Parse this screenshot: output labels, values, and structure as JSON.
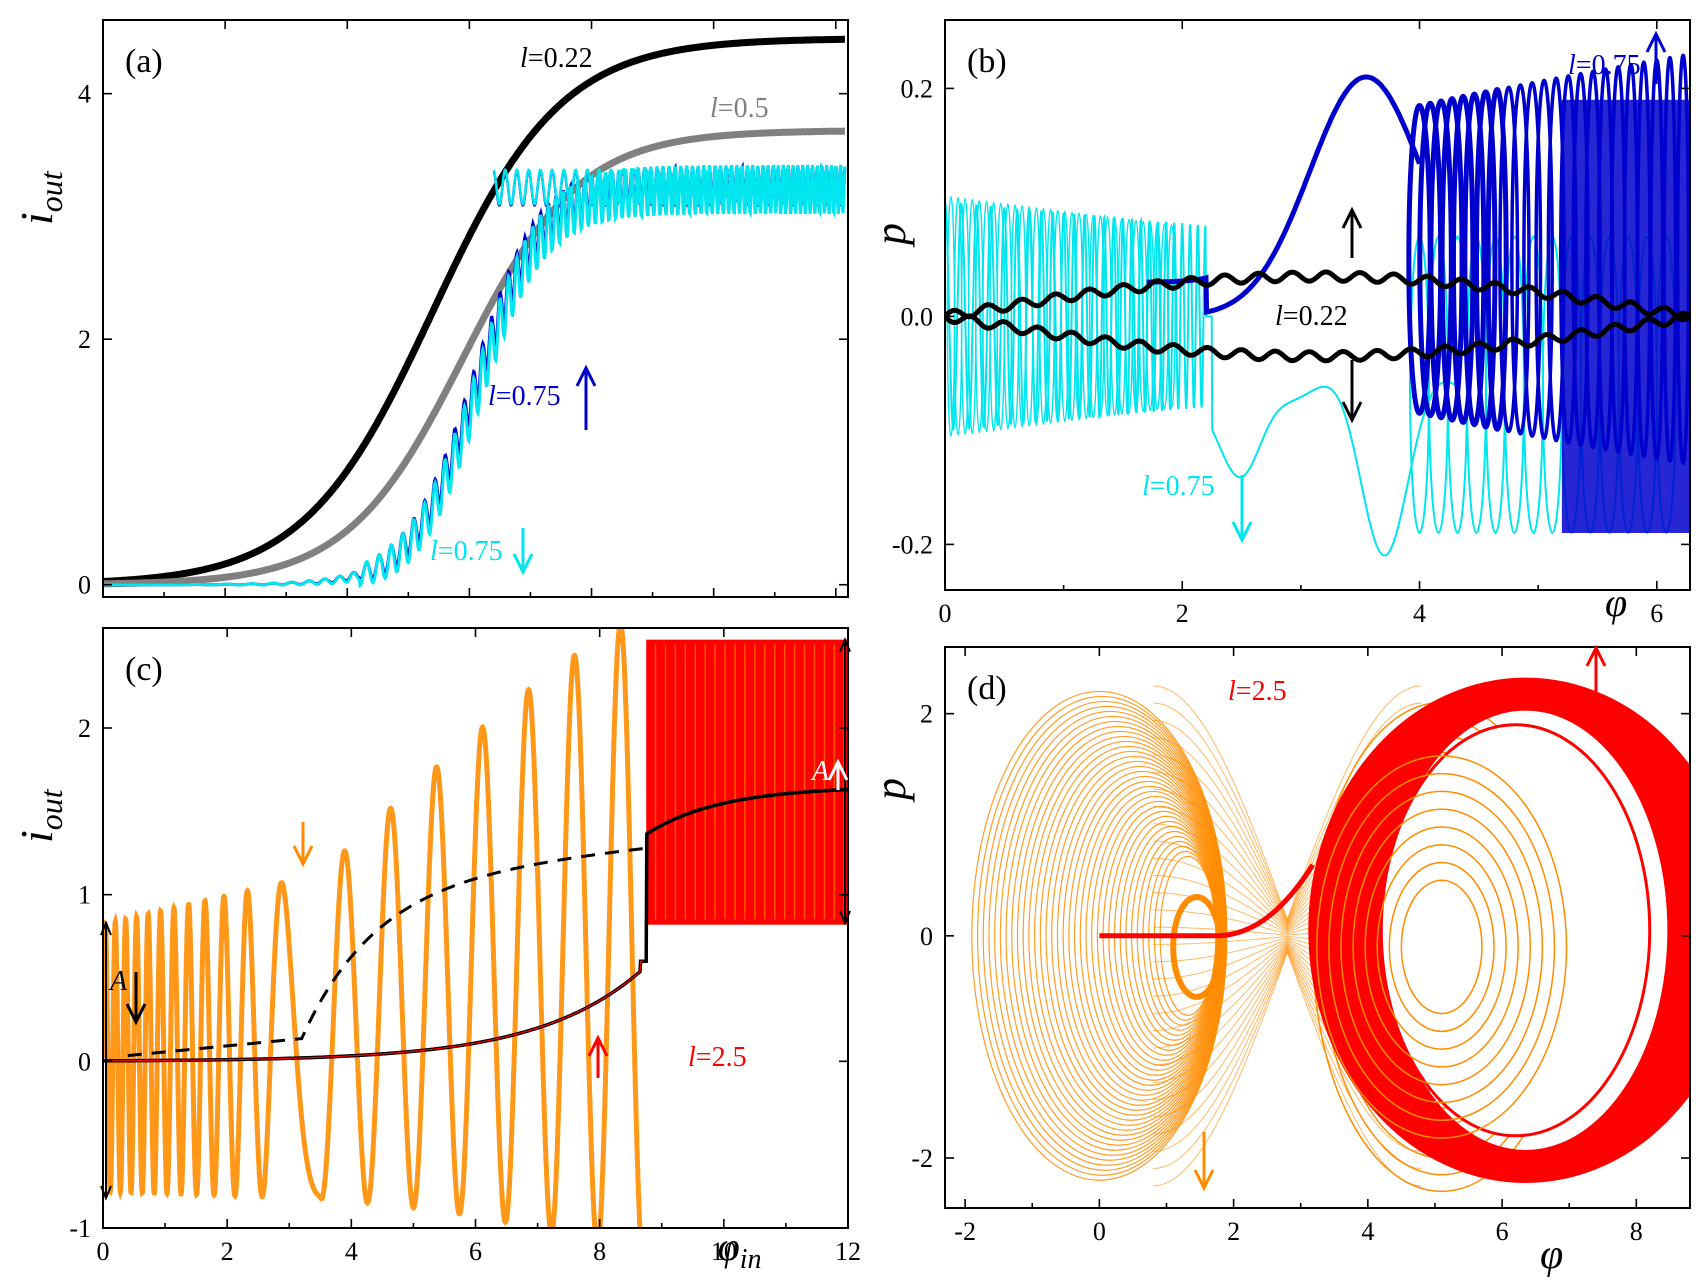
{
  "chart_data": [
    {
      "type": "line",
      "panel_label": "(a)",
      "xlim": [
        0,
        12.2
      ],
      "ylim": [
        -0.1,
        4.6
      ],
      "xticks": [
        0,
        2,
        4,
        6,
        8,
        10,
        12
      ],
      "xtick_labels": [
        "",
        "",
        "",
        "",
        "",
        "",
        ""
      ],
      "yticks": [
        0,
        2,
        4
      ],
      "ytick_labels": [
        "0",
        "2",
        "4"
      ],
      "ylabel_main": "i",
      "ylabel_sub": "out",
      "series": [
        {
          "label": "l=0.22",
          "color": "#000000",
          "ymax": 4.45,
          "x0": 5.4,
          "k": 0.95
        },
        {
          "label": "l=0.5",
          "color": "#808080",
          "ymax": 3.7,
          "x0": 5.9,
          "k": 1.05
        },
        {
          "label": "l=0.75↑",
          "color": "#0000cc",
          "ymax": 3.25,
          "x0": 6.1,
          "k": 1.9,
          "osc": 0.16
        },
        {
          "label": "l=0.75↓",
          "color": "#00e5ee",
          "ymax": 3.22,
          "x0": 6.15,
          "k": 1.9,
          "osc": 0.2
        }
      ],
      "annotations": [
        {
          "italic": "l",
          "text": "=0.22",
          "color": "#000000"
        },
        {
          "italic": "l",
          "text": "=0.5",
          "color": "#808080"
        },
        {
          "italic": "l",
          "text": "=0.75",
          "color": "#0000cc"
        },
        {
          "italic": "l",
          "text": "=0.75",
          "color": "#00e5ee"
        }
      ]
    },
    {
      "type": "scatter",
      "panel_label": "(b)",
      "xlim": [
        0,
        6.28
      ],
      "ylim": [
        -0.24,
        0.26
      ],
      "xticks": [
        0,
        2,
        4,
        6
      ],
      "xtick_labels": [
        "0",
        "2",
        "4",
        "6"
      ],
      "yticks": [
        -0.2,
        0.0,
        0.2
      ],
      "ytick_labels": [
        "-0.2",
        "0.0",
        "0.2"
      ],
      "xlabel": "φ",
      "ylabel": "p",
      "annotations": [
        {
          "italic": "l",
          "text": "=0.75",
          "color": "#0000cc"
        },
        {
          "italic": "l",
          "text": "=0.22",
          "color": "#000000"
        },
        {
          "italic": "l",
          "text": "=0.75",
          "color": "#00e5ee"
        }
      ]
    },
    {
      "type": "line",
      "panel_label": "(c)",
      "xlim": [
        0,
        12
      ],
      "ylim": [
        -1,
        2.6
      ],
      "xticks": [
        0,
        2,
        4,
        6,
        8,
        10,
        12
      ],
      "xtick_labels": [
        "0",
        "2",
        "4",
        "6",
        "8",
        "10",
        "12"
      ],
      "yticks": [
        -1,
        0,
        1,
        2
      ],
      "ytick_labels": [
        "-1",
        "0",
        "1",
        "2"
      ],
      "xlabel_main": "φ",
      "xlabel_sub": "in",
      "ylabel_main": "i",
      "ylabel_sub": "out",
      "annotations": [
        {
          "italic": "l",
          "text": "=2.5",
          "color": "#ff0000"
        },
        {
          "text": "A",
          "color": "#000000"
        },
        {
          "text": "A",
          "color": "#ffffff"
        }
      ]
    },
    {
      "type": "scatter",
      "panel_label": "(d)",
      "xlim": [
        -2.3,
        8.8
      ],
      "ylim": [
        -2.45,
        2.6
      ],
      "xticks": [
        -2,
        0,
        2,
        4,
        6,
        8
      ],
      "xtick_labels": [
        "-2",
        "0",
        "2",
        "4",
        "6",
        "8"
      ],
      "yticks": [
        -2,
        0,
        2
      ],
      "ytick_labels": [
        "-2",
        "0",
        "2"
      ],
      "xlabel": "φ",
      "ylabel": "p",
      "annotations": [
        {
          "italic": "l",
          "text": "=2.5",
          "color": "#ff0000"
        }
      ]
    }
  ]
}
